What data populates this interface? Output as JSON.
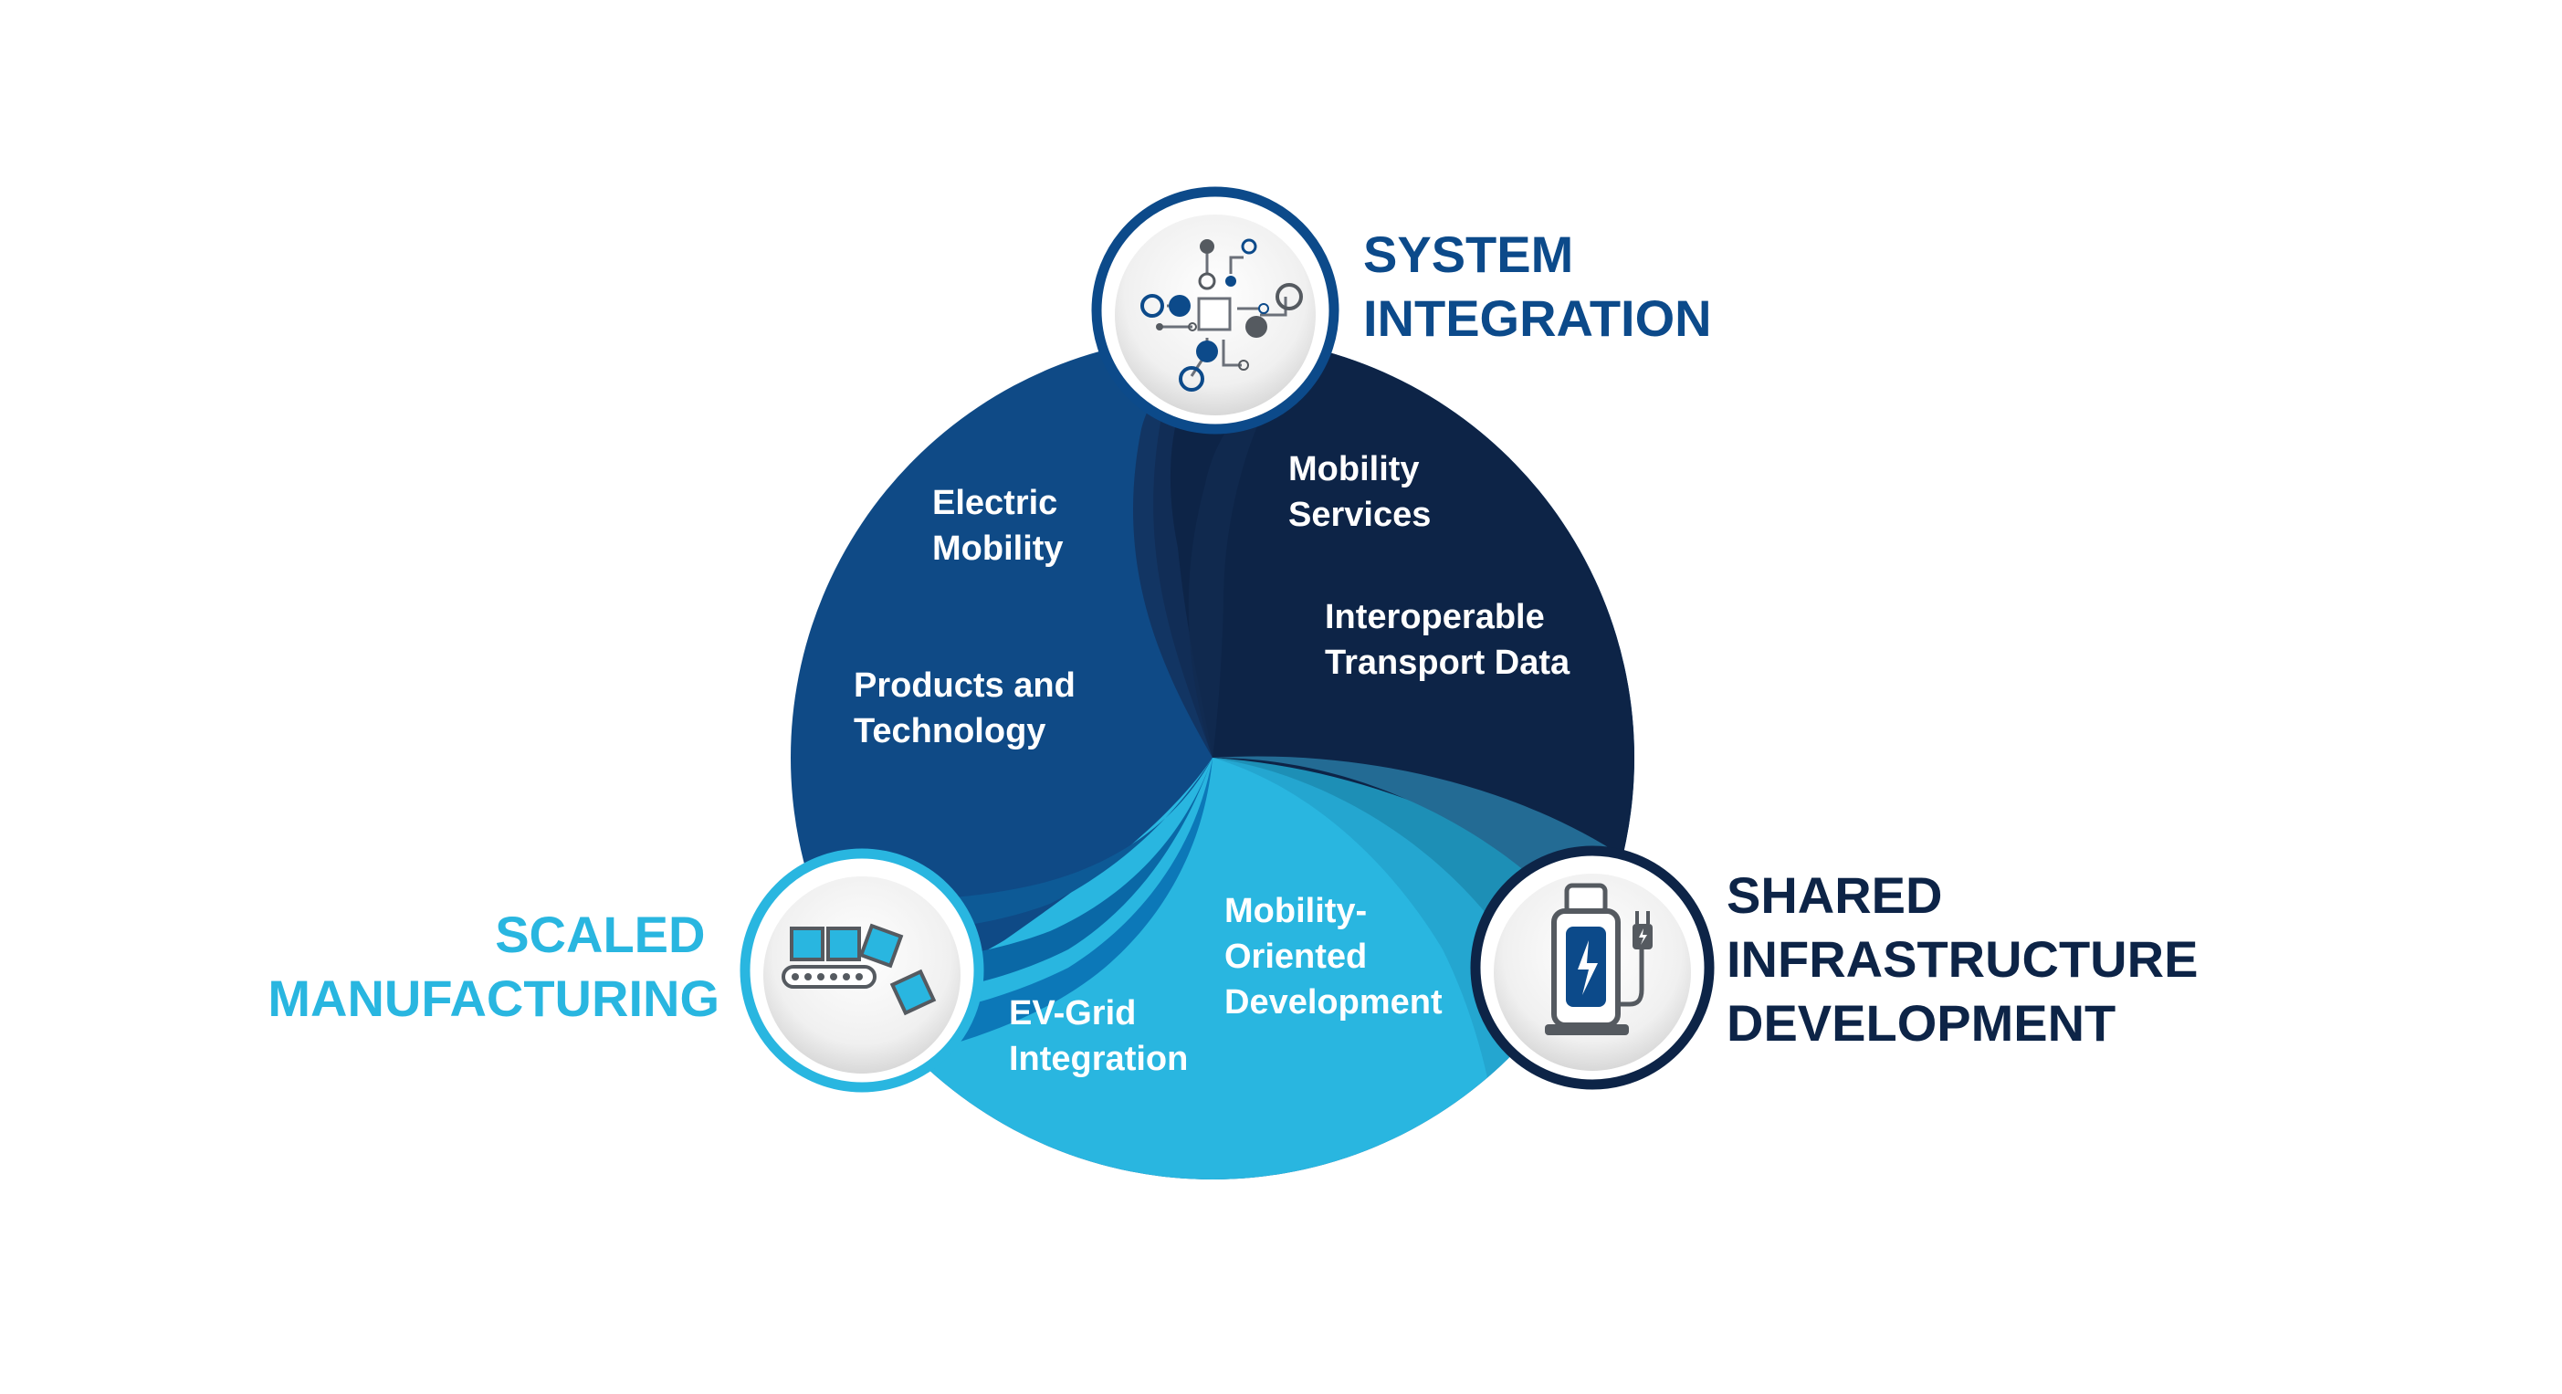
{
  "colors": {
    "navy": "#0d2447",
    "blue": "#0f4a86",
    "cyan": "#29b6e0",
    "system_title": "#0c4a8a",
    "manufacturing_title": "#29b6e0",
    "infrastructure_title": "#0d2447",
    "icon_gray": "#555a60"
  },
  "pillars": [
    {
      "id": "system",
      "icon": "circuit-network-icon",
      "title_lines": [
        "SYSTEM",
        "INTEGRATION"
      ]
    },
    {
      "id": "manufacturing",
      "icon": "conveyor-belt-icon",
      "title_lines": [
        "SCALED",
        "MANUFACTURING"
      ]
    },
    {
      "id": "infrastructure",
      "icon": "ev-charger-icon",
      "title_lines": [
        "SHARED",
        "INFRASTRUCTURE",
        "DEVELOPMENT"
      ]
    }
  ],
  "segments": [
    {
      "id": "electric-mobility",
      "lines": [
        "Electric",
        "Mobility"
      ]
    },
    {
      "id": "products-and-technology",
      "lines": [
        "Products and",
        "Technology"
      ]
    },
    {
      "id": "mobility-services",
      "lines": [
        "Mobility",
        "Services"
      ]
    },
    {
      "id": "interoperable-transport-data",
      "lines": [
        "Interoperable",
        "Transport Data"
      ]
    },
    {
      "id": "mobility-oriented-development",
      "lines": [
        "Mobility-",
        "Oriented",
        "Development"
      ]
    },
    {
      "id": "ev-grid-integration",
      "lines": [
        "EV-Grid",
        "Integration"
      ]
    }
  ]
}
